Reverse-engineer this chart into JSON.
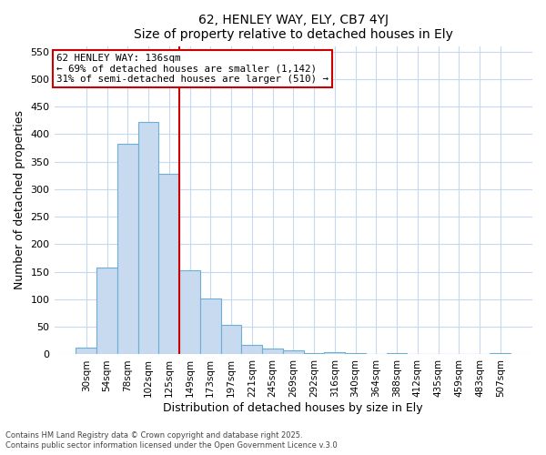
{
  "title1": "62, HENLEY WAY, ELY, CB7 4YJ",
  "title2": "Size of property relative to detached houses in Ely",
  "xlabel": "Distribution of detached houses by size in Ely",
  "ylabel": "Number of detached properties",
  "categories": [
    "30sqm",
    "54sqm",
    "78sqm",
    "102sqm",
    "125sqm",
    "149sqm",
    "173sqm",
    "197sqm",
    "221sqm",
    "245sqm",
    "269sqm",
    "292sqm",
    "316sqm",
    "340sqm",
    "364sqm",
    "388sqm",
    "412sqm",
    "435sqm",
    "459sqm",
    "483sqm",
    "507sqm"
  ],
  "values": [
    12,
    157,
    383,
    422,
    328,
    153,
    101,
    54,
    18,
    11,
    8,
    3,
    4,
    2,
    1,
    2,
    1,
    1,
    0,
    1,
    3
  ],
  "bar_color": "#c8daf0",
  "bar_edge_color": "#6baed6",
  "ref_line_x": 4.5,
  "ref_line_color": "#cc0000",
  "annotation_line1": "62 HENLEY WAY: 136sqm",
  "annotation_line2": "← 69% of detached houses are smaller (1,142)",
  "annotation_line3": "31% of semi-detached houses are larger (510) →",
  "annotation_box_color": "#cc0000",
  "ylim": [
    0,
    560
  ],
  "yticks": [
    0,
    50,
    100,
    150,
    200,
    250,
    300,
    350,
    400,
    450,
    500,
    550
  ],
  "bg_color": "#ffffff",
  "grid_color": "#c8d8f0",
  "footer1": "Contains HM Land Registry data © Crown copyright and database right 2025.",
  "footer2": "Contains public sector information licensed under the Open Government Licence v.3.0"
}
